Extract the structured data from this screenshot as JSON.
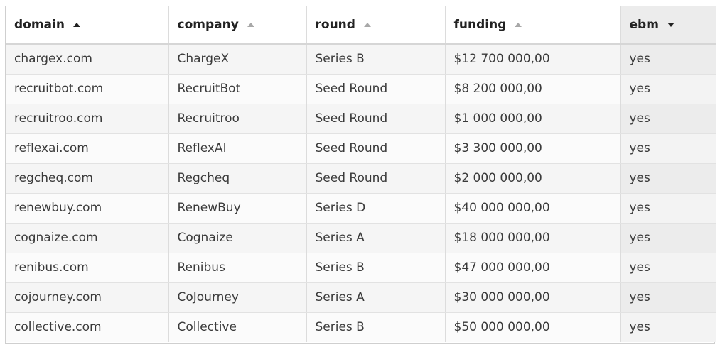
{
  "table": {
    "columns": [
      {
        "label": "domain",
        "sort": "asc",
        "sort_state": "active"
      },
      {
        "label": "company",
        "sort": "asc",
        "sort_state": "inactive"
      },
      {
        "label": "round",
        "sort": "asc",
        "sort_state": "inactive"
      },
      {
        "label": "funding",
        "sort": "asc",
        "sort_state": "inactive"
      },
      {
        "label": "ebm",
        "sort": "desc",
        "sort_state": "active"
      }
    ],
    "rows": [
      {
        "domain": "chargex.com",
        "company": "ChargeX",
        "round": "Series B",
        "funding": "$12 700 000,00",
        "ebm": "yes"
      },
      {
        "domain": "recruitbot.com",
        "company": "RecruitBot",
        "round": "Seed Round",
        "funding": "$8 200 000,00",
        "ebm": "yes"
      },
      {
        "domain": "recruitroo.com",
        "company": "Recruitroo",
        "round": "Seed Round",
        "funding": "$1 000 000,00",
        "ebm": "yes"
      },
      {
        "domain": "reflexai.com",
        "company": "ReflexAI",
        "round": "Seed Round",
        "funding": "$3 300 000,00",
        "ebm": "yes"
      },
      {
        "domain": "regcheq.com",
        "company": "Regcheq",
        "round": "Seed Round",
        "funding": "$2 000 000,00",
        "ebm": "yes"
      },
      {
        "domain": "renewbuy.com",
        "company": "RenewBuy",
        "round": "Series D",
        "funding": "$40 000 000,00",
        "ebm": "yes"
      },
      {
        "domain": "cognaize.com",
        "company": "Cognaize",
        "round": "Series A",
        "funding": "$18 000 000,00",
        "ebm": "yes"
      },
      {
        "domain": "renibus.com",
        "company": "Renibus",
        "round": "Series B",
        "funding": "$47 000 000,00",
        "ebm": "yes"
      },
      {
        "domain": "cojourney.com",
        "company": "CoJourney",
        "round": "Series A",
        "funding": "$30 000 000,00",
        "ebm": "yes"
      },
      {
        "domain": "collective.com",
        "company": "Collective",
        "round": "Series B",
        "funding": "$50 000 000,00",
        "ebm": "yes"
      }
    ]
  },
  "icons": {
    "sort_asc": "sort-ascending-icon",
    "sort_desc": "sort-descending-icon"
  },
  "colors": {
    "header_sorted_bg": "#ececec",
    "row_odd_bg": "#f5f5f5",
    "row_even_bg": "#fbfbfb",
    "border": "#dcdcdc"
  }
}
